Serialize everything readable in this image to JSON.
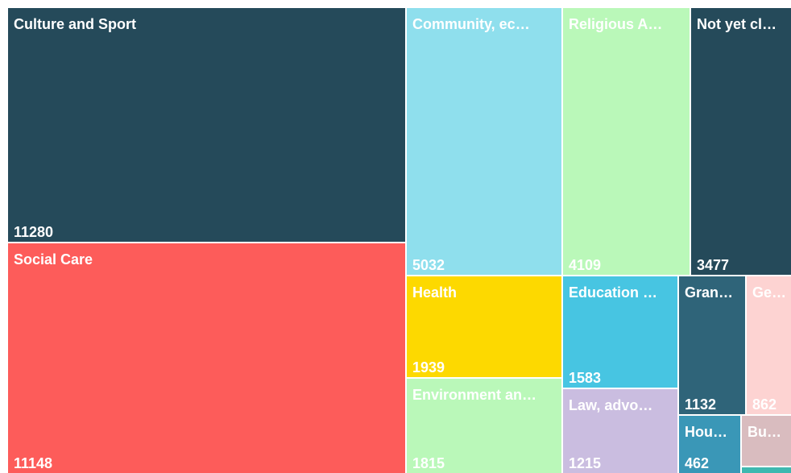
{
  "chart_data": {
    "type": "treemap",
    "categories": [
      "Culture and Sport",
      "Social Care",
      "Community, ec…",
      "Religious A…",
      "Not yet cl…",
      "Health",
      "Environment an…",
      "Education …",
      "Law, advo…",
      "Gran…",
      "Ge…",
      "Hou…",
      "Bu…"
    ],
    "values": [
      11280,
      11148,
      5032,
      4109,
      3477,
      1939,
      1815,
      1583,
      1215,
      1132,
      862,
      462,
      null
    ],
    "colors": [
      "#254a5a",
      "#fd5c5a",
      "#8fdfed",
      "#baf8b9",
      "#254a5a",
      "#fdd900",
      "#baf8b9",
      "#47c5e2",
      "#cabde0",
      "#2f6479",
      "#fdd3d2",
      "#3a97b7",
      "#d9bcbf"
    ]
  }
}
